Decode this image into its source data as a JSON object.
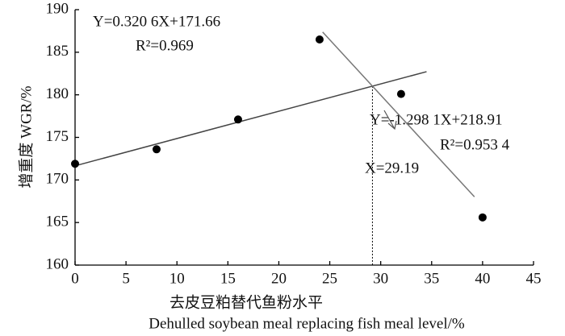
{
  "chart_data": {
    "type": "scatter",
    "x_label": "去皮豆粕替代鱼粉水平",
    "x_label_en": "Dehulled soybean meal replacing fish meal  level/%",
    "y_label": "增重度  WGR/%",
    "xlim": [
      0,
      45
    ],
    "ylim": [
      160,
      190
    ],
    "xticks": [
      0,
      5,
      10,
      15,
      20,
      25,
      30,
      35,
      40,
      45
    ],
    "yticks": [
      160,
      165,
      170,
      175,
      180,
      185,
      190
    ],
    "points": {
      "x": [
        0,
        8,
        16,
        24,
        32,
        40
      ],
      "values": [
        171.9,
        173.6,
        177.1,
        186.5,
        180.1,
        165.6
      ],
      "color": "#000000"
    },
    "fits": [
      {
        "x": [
          0,
          34.5
        ],
        "values": [
          171.66,
          182.72
        ],
        "color": "#444444",
        "equation": "Y=0.320 6X+171.66",
        "r2": "R²=0.969"
      },
      {
        "x": [
          24.3,
          39.2
        ],
        "values": [
          187.37,
          168.02
        ],
        "color": "#777777",
        "equation": "Y=-1.298 1X+218.91",
        "r2": "R²=0.953 4"
      }
    ],
    "breakpoint": {
      "x": 29.19,
      "y": 181.02,
      "label": "X=29.19"
    }
  }
}
